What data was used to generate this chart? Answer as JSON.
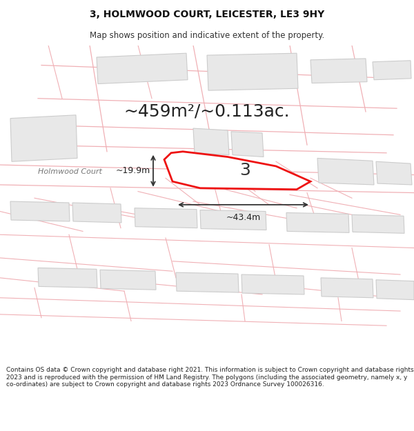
{
  "title": "3, HOLMWOOD COURT, LEICESTER, LE3 9HY",
  "subtitle": "Map shows position and indicative extent of the property.",
  "area_text": "~459m²/~0.113ac.",
  "width_label": "~43.4m",
  "height_label": "~19.9m",
  "property_number": "3",
  "street_label": "Holmwood Court",
  "footer": "Contains OS data © Crown copyright and database right 2021. This information is subject to Crown copyright and database rights 2023 and is reproduced with the permission of HM Land Registry. The polygons (including the associated geometry, namely x, y co-ordinates) are subject to Crown copyright and database rights 2023 Ordnance Survey 100026316.",
  "bg_color": "#ffffff",
  "map_bg": "#ffffff",
  "line_color": "#f0b0b5",
  "building_fill": "#e8e8e8",
  "building_edge": "#cccccc",
  "property_fill": "#ffffff",
  "property_edge": "#ee1111",
  "title_fontsize": 10,
  "subtitle_fontsize": 8.5,
  "footer_fontsize": 6.5,
  "area_fontsize": 18
}
